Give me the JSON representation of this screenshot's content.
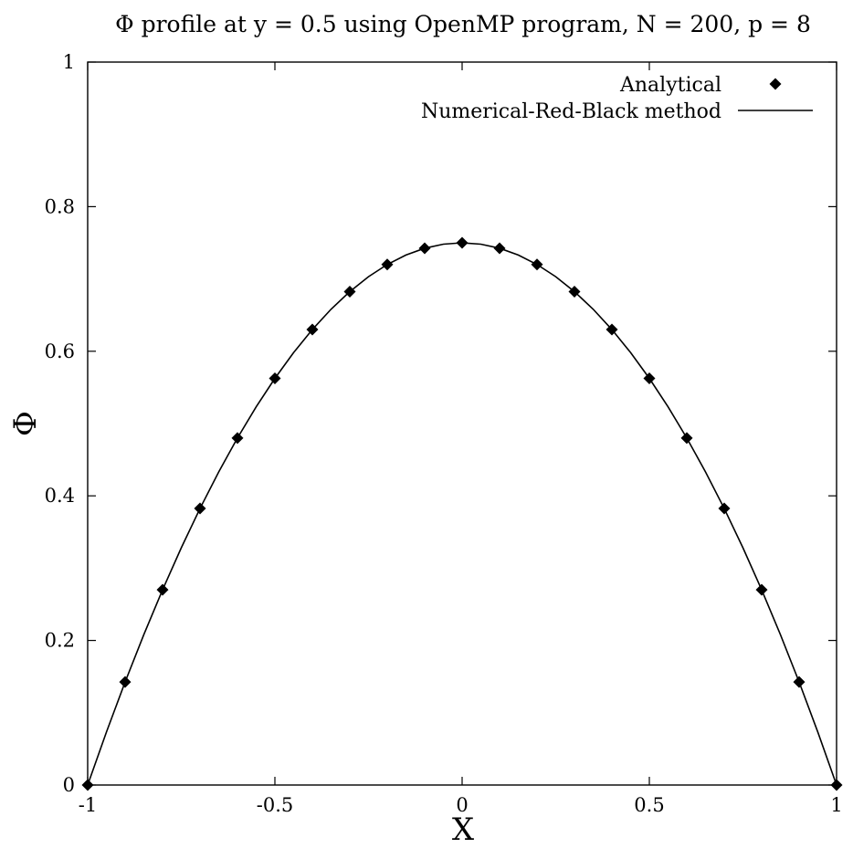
{
  "chart_data": {
    "type": "line",
    "title": "Φ profile at y = 0.5 using OpenMP program, N = 200, p = 8",
    "xlabel": "X",
    "ylabel": "Φ",
    "xlim": [
      -1,
      1
    ],
    "ylim": [
      0,
      1
    ],
    "x_ticks": [
      -1,
      -0.5,
      0,
      0.5,
      1
    ],
    "x_tick_labels": [
      "-1",
      "-0.5",
      "0",
      "0.5",
      "1"
    ],
    "y_ticks": [
      0,
      0.2,
      0.4,
      0.6,
      0.8,
      1
    ],
    "y_tick_labels": [
      "0",
      "0.2",
      "0.4",
      "0.6",
      "0.8",
      "1"
    ],
    "grid": false,
    "legend_position": "top-right",
    "series": [
      {
        "name": "Analytical",
        "style": "markers",
        "marker": "diamond",
        "color": "#000000",
        "x": [
          -1,
          -0.9,
          -0.8,
          -0.7,
          -0.6,
          -0.5,
          -0.4,
          -0.3,
          -0.2,
          -0.1,
          0,
          0.1,
          0.2,
          0.3,
          0.4,
          0.5,
          0.6,
          0.7,
          0.8,
          0.9,
          1
        ],
        "y": [
          0,
          0.1425,
          0.27,
          0.3825,
          0.48,
          0.5625,
          0.63,
          0.6825,
          0.72,
          0.7425,
          0.75,
          0.7425,
          0.72,
          0.6825,
          0.63,
          0.5625,
          0.48,
          0.3825,
          0.27,
          0.1425,
          0
        ]
      },
      {
        "name": "Numerical-Red-Black method",
        "style": "line",
        "color": "#000000",
        "x": [
          -1,
          -0.95,
          -0.9,
          -0.85,
          -0.8,
          -0.75,
          -0.7,
          -0.65,
          -0.6,
          -0.55,
          -0.5,
          -0.45,
          -0.4,
          -0.35,
          -0.3,
          -0.25,
          -0.2,
          -0.15,
          -0.1,
          -0.05,
          0,
          0.05,
          0.1,
          0.15,
          0.2,
          0.25,
          0.3,
          0.35,
          0.4,
          0.45,
          0.5,
          0.55,
          0.6,
          0.65,
          0.7,
          0.75,
          0.8,
          0.85,
          0.9,
          0.95,
          1
        ],
        "y": [
          0,
          0.073125,
          0.1425,
          0.208125,
          0.27,
          0.328125,
          0.3825,
          0.433125,
          0.48,
          0.523125,
          0.5625,
          0.598125,
          0.63,
          0.658125,
          0.6825,
          0.703125,
          0.72,
          0.733125,
          0.7425,
          0.748125,
          0.75,
          0.748125,
          0.7425,
          0.733125,
          0.72,
          0.703125,
          0.6825,
          0.658125,
          0.63,
          0.598125,
          0.5625,
          0.523125,
          0.48,
          0.433125,
          0.3825,
          0.328125,
          0.27,
          0.208125,
          0.1425,
          0.073125,
          0
        ]
      }
    ]
  }
}
